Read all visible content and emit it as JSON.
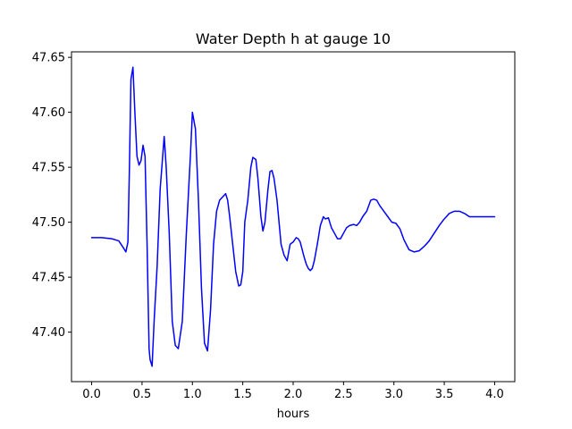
{
  "chart_data": {
    "type": "line",
    "title": "Water Depth h at gauge 10",
    "xlabel": "hours",
    "ylabel": "",
    "xlim": [
      -0.2,
      4.2
    ],
    "ylim": [
      47.355,
      47.655
    ],
    "xticks": [
      0.0,
      0.5,
      1.0,
      1.5,
      2.0,
      2.5,
      3.0,
      3.5,
      4.0
    ],
    "xtick_labels": [
      "0.0",
      "0.5",
      "1.0",
      "1.5",
      "2.0",
      "2.5",
      "3.0",
      "3.5",
      "4.0"
    ],
    "yticks": [
      47.4,
      47.45,
      47.5,
      47.55,
      47.6,
      47.65
    ],
    "ytick_labels": [
      "47.40",
      "47.45",
      "47.50",
      "47.55",
      "47.60",
      "47.65"
    ],
    "grid": false,
    "series": [
      {
        "color": "#0000ff",
        "x": [
          0.0,
          0.1,
          0.2,
          0.27,
          0.32,
          0.34,
          0.36,
          0.375,
          0.39,
          0.41,
          0.43,
          0.45,
          0.47,
          0.49,
          0.51,
          0.53,
          0.55,
          0.57,
          0.58,
          0.6,
          0.62,
          0.65,
          0.68,
          0.72,
          0.74,
          0.77,
          0.8,
          0.83,
          0.86,
          0.9,
          0.94,
          0.98,
          1.0,
          1.03,
          1.06,
          1.09,
          1.12,
          1.15,
          1.18,
          1.21,
          1.24,
          1.27,
          1.3,
          1.33,
          1.35,
          1.37,
          1.4,
          1.43,
          1.46,
          1.48,
          1.5,
          1.52,
          1.55,
          1.58,
          1.6,
          1.63,
          1.65,
          1.68,
          1.7,
          1.72,
          1.75,
          1.77,
          1.79,
          1.81,
          1.84,
          1.86,
          1.88,
          1.91,
          1.94,
          1.97,
          2.0,
          2.03,
          2.05,
          2.07,
          2.09,
          2.11,
          2.13,
          2.15,
          2.17,
          2.19,
          2.21,
          2.24,
          2.27,
          2.3,
          2.32,
          2.35,
          2.38,
          2.41,
          2.44,
          2.47,
          2.5,
          2.53,
          2.56,
          2.6,
          2.63,
          2.66,
          2.69,
          2.73,
          2.77,
          2.8,
          2.83,
          2.86,
          2.9,
          2.94,
          2.98,
          3.02,
          3.06,
          3.1,
          3.15,
          3.2,
          3.25,
          3.3,
          3.35,
          3.4,
          3.45,
          3.5,
          3.55,
          3.6,
          3.65,
          3.7,
          3.75,
          3.8,
          3.85,
          3.9,
          3.95,
          4.0
        ],
        "y": [
          47.486,
          47.486,
          47.485,
          47.483,
          47.476,
          47.473,
          47.482,
          47.55,
          47.63,
          47.641,
          47.598,
          47.56,
          47.552,
          47.556,
          47.57,
          47.56,
          47.48,
          47.385,
          47.375,
          47.369,
          47.41,
          47.46,
          47.53,
          47.578,
          47.55,
          47.49,
          47.41,
          47.388,
          47.385,
          47.41,
          47.49,
          47.56,
          47.6,
          47.585,
          47.52,
          47.44,
          47.39,
          47.383,
          47.42,
          47.48,
          47.51,
          47.52,
          47.523,
          47.526,
          47.52,
          47.505,
          47.48,
          47.455,
          47.442,
          47.443,
          47.455,
          47.5,
          47.52,
          47.55,
          47.559,
          47.557,
          47.54,
          47.505,
          47.492,
          47.5,
          47.53,
          47.546,
          47.547,
          47.54,
          47.52,
          47.5,
          47.48,
          47.47,
          47.465,
          47.48,
          47.482,
          47.486,
          47.485,
          47.482,
          47.475,
          47.468,
          47.462,
          47.458,
          47.456,
          47.458,
          47.465,
          47.48,
          47.497,
          47.505,
          47.503,
          47.504,
          47.495,
          47.49,
          47.485,
          47.485,
          47.49,
          47.495,
          47.497,
          47.498,
          47.497,
          47.5,
          47.505,
          47.51,
          47.52,
          47.521,
          47.52,
          47.515,
          47.51,
          47.505,
          47.5,
          47.499,
          47.494,
          47.484,
          47.475,
          47.473,
          47.474,
          47.478,
          47.483,
          47.49,
          47.497,
          47.503,
          47.508,
          47.51,
          47.51,
          47.508,
          47.505,
          47.505,
          47.505,
          47.505,
          47.505,
          47.505
        ]
      }
    ]
  }
}
